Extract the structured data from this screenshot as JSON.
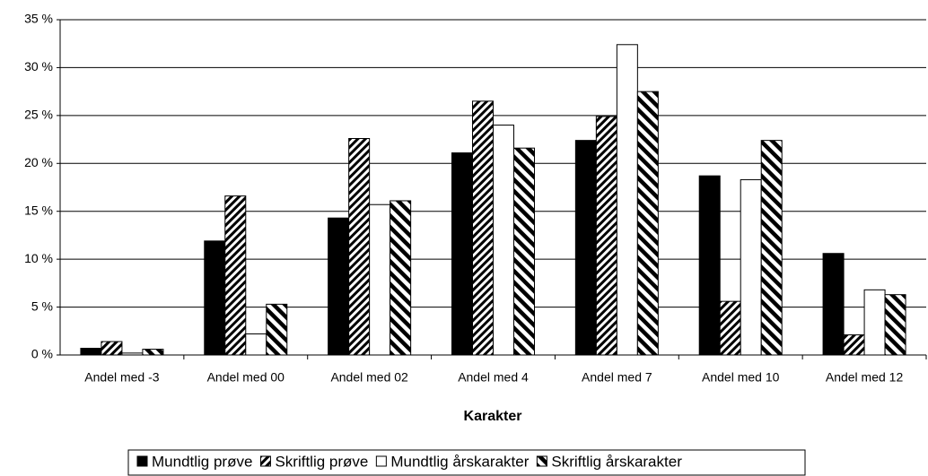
{
  "chart_data": {
    "type": "bar",
    "x_label": "Karakter",
    "categories": [
      "Andel med -3",
      "Andel med 00",
      "Andel med 02",
      "Andel med 4",
      "Andel med 7",
      "Andel med 10",
      "Andel med 12"
    ],
    "series": [
      {
        "name": "Mundtlig prøve",
        "color": "#000000",
        "pattern": "solid",
        "values": [
          0.7,
          11.9,
          14.3,
          21.1,
          22.4,
          18.7,
          10.6
        ]
      },
      {
        "name": "Skriftlig prøve",
        "color": "#000000",
        "pattern": "forward-hatch",
        "values": [
          1.4,
          16.6,
          22.6,
          26.5,
          24.9,
          5.6,
          2.1
        ]
      },
      {
        "name": "Mundtlig årskarakter",
        "color": "#ffffff",
        "pattern": "solid",
        "values": [
          0.2,
          2.2,
          15.7,
          24.0,
          32.4,
          18.3,
          6.8
        ]
      },
      {
        "name": "Skriftlig årskarakter",
        "color": "#000000",
        "pattern": "backward-hatch",
        "values": [
          0.6,
          5.3,
          16.1,
          21.6,
          27.5,
          22.4,
          6.3
        ]
      }
    ],
    "ylim": [
      0,
      35
    ],
    "yticks": [
      {
        "value": 0,
        "label": "0 %"
      },
      {
        "value": 5,
        "label": "5 %"
      },
      {
        "value": 10,
        "label": "10 %"
      },
      {
        "value": 15,
        "label": "15 %"
      },
      {
        "value": 20,
        "label": "20 %"
      },
      {
        "value": 25,
        "label": "25 %"
      },
      {
        "value": 30,
        "label": "30 %"
      },
      {
        "value": 35,
        "label": "35 %"
      }
    ],
    "grid": true,
    "legend": "bottom"
  }
}
